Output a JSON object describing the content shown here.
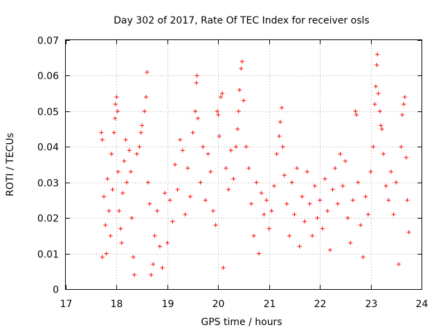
{
  "chart_data": {
    "type": "scatter",
    "title": "Day 302 of 2017, Rate Of TEC Index for receiver osls",
    "xlabel": "GPS time / hours",
    "ylabel": "ROTI / TECUs",
    "xlim": [
      17,
      24
    ],
    "ylim": [
      0,
      0.07
    ],
    "xticks": [
      17,
      18,
      19,
      20,
      21,
      22,
      23,
      24
    ],
    "xtick_labels": [
      "17",
      "18",
      "19",
      "20",
      "21",
      "22",
      "23",
      "24"
    ],
    "yticks": [
      0,
      0.01,
      0.02,
      0.03,
      0.04,
      0.05,
      0.06,
      0.07
    ],
    "ytick_labels": [
      "0",
      "0.01",
      "0.02",
      "0.03",
      "0.04",
      "0.05",
      "0.06",
      "0.07"
    ],
    "grid": true,
    "marker": "+",
    "color": "#ff0000",
    "series": [
      {
        "name": "ROTI",
        "points": [
          [
            17.7,
            0.044
          ],
          [
            17.72,
            0.042
          ],
          [
            17.72,
            0.009
          ],
          [
            17.75,
            0.026
          ],
          [
            17.78,
            0.018
          ],
          [
            17.8,
            0.01
          ],
          [
            17.82,
            0.031
          ],
          [
            17.85,
            0.022
          ],
          [
            17.88,
            0.015
          ],
          [
            17.9,
            0.038
          ],
          [
            17.92,
            0.028
          ],
          [
            17.95,
            0.044
          ],
          [
            17.97,
            0.048
          ],
          [
            17.98,
            0.052
          ],
          [
            18.0,
            0.054
          ],
          [
            18.02,
            0.05
          ],
          [
            18.03,
            0.033
          ],
          [
            18.05,
            0.022
          ],
          [
            18.08,
            0.017
          ],
          [
            18.1,
            0.013
          ],
          [
            18.12,
            0.027
          ],
          [
            18.15,
            0.036
          ],
          [
            18.18,
            0.042
          ],
          [
            18.2,
            0.03
          ],
          [
            18.25,
            0.039
          ],
          [
            18.28,
            0.033
          ],
          [
            18.3,
            0.02
          ],
          [
            18.33,
            0.009
          ],
          [
            18.35,
            0.004
          ],
          [
            18.4,
            0.038
          ],
          [
            18.45,
            0.04
          ],
          [
            18.48,
            0.044
          ],
          [
            18.5,
            0.046
          ],
          [
            18.55,
            0.05
          ],
          [
            18.58,
            0.054
          ],
          [
            18.6,
            0.061
          ],
          [
            18.62,
            0.03
          ],
          [
            18.65,
            0.024
          ],
          [
            18.68,
            0.004
          ],
          [
            18.72,
            0.007
          ],
          [
            18.75,
            0.015
          ],
          [
            18.8,
            0.022
          ],
          [
            18.85,
            0.012
          ],
          [
            18.9,
            0.006
          ],
          [
            18.95,
            0.027
          ],
          [
            19.0,
            0.013
          ],
          [
            19.05,
            0.025
          ],
          [
            19.1,
            0.019
          ],
          [
            19.15,
            0.035
          ],
          [
            19.2,
            0.028
          ],
          [
            19.25,
            0.042
          ],
          [
            19.3,
            0.039
          ],
          [
            19.35,
            0.021
          ],
          [
            19.4,
            0.034
          ],
          [
            19.45,
            0.026
          ],
          [
            19.5,
            0.044
          ],
          [
            19.55,
            0.05
          ],
          [
            19.57,
            0.058
          ],
          [
            19.58,
            0.06
          ],
          [
            19.6,
            0.048
          ],
          [
            19.65,
            0.03
          ],
          [
            19.7,
            0.04
          ],
          [
            19.75,
            0.025
          ],
          [
            19.8,
            0.038
          ],
          [
            19.85,
            0.033
          ],
          [
            19.9,
            0.022
          ],
          [
            19.95,
            0.018
          ],
          [
            19.98,
            0.05
          ],
          [
            20.0,
            0.049
          ],
          [
            20.02,
            0.043
          ],
          [
            20.05,
            0.054
          ],
          [
            20.08,
            0.055
          ],
          [
            20.1,
            0.006
          ],
          [
            20.15,
            0.034
          ],
          [
            20.2,
            0.028
          ],
          [
            20.25,
            0.039
          ],
          [
            20.3,
            0.031
          ],
          [
            20.35,
            0.04
          ],
          [
            20.38,
            0.045
          ],
          [
            20.4,
            0.05
          ],
          [
            20.42,
            0.056
          ],
          [
            20.45,
            0.062
          ],
          [
            20.47,
            0.064
          ],
          [
            20.5,
            0.053
          ],
          [
            20.55,
            0.04
          ],
          [
            20.6,
            0.034
          ],
          [
            20.65,
            0.024
          ],
          [
            20.7,
            0.015
          ],
          [
            20.75,
            0.03
          ],
          [
            20.8,
            0.01
          ],
          [
            20.85,
            0.027
          ],
          [
            20.9,
            0.021
          ],
          [
            20.95,
            0.025
          ],
          [
            21.0,
            0.017
          ],
          [
            21.05,
            0.022
          ],
          [
            21.1,
            0.029
          ],
          [
            21.15,
            0.038
          ],
          [
            21.2,
            0.043
          ],
          [
            21.22,
            0.047
          ],
          [
            21.25,
            0.051
          ],
          [
            21.27,
            0.04
          ],
          [
            21.3,
            0.032
          ],
          [
            21.35,
            0.024
          ],
          [
            21.4,
            0.015
          ],
          [
            21.45,
            0.03
          ],
          [
            21.5,
            0.021
          ],
          [
            21.55,
            0.034
          ],
          [
            21.6,
            0.012
          ],
          [
            21.65,
            0.026
          ],
          [
            21.7,
            0.019
          ],
          [
            21.75,
            0.033
          ],
          [
            21.8,
            0.024
          ],
          [
            21.85,
            0.015
          ],
          [
            21.9,
            0.029
          ],
          [
            21.95,
            0.02
          ],
          [
            22.0,
            0.025
          ],
          [
            22.05,
            0.017
          ],
          [
            22.1,
            0.031
          ],
          [
            22.15,
            0.022
          ],
          [
            22.2,
            0.011
          ],
          [
            22.25,
            0.028
          ],
          [
            22.3,
            0.034
          ],
          [
            22.35,
            0.024
          ],
          [
            22.4,
            0.038
          ],
          [
            22.45,
            0.029
          ],
          [
            22.5,
            0.036
          ],
          [
            22.55,
            0.02
          ],
          [
            22.6,
            0.013
          ],
          [
            22.65,
            0.025
          ],
          [
            22.7,
            0.05
          ],
          [
            22.72,
            0.049
          ],
          [
            22.75,
            0.03
          ],
          [
            22.8,
            0.018
          ],
          [
            22.85,
            0.009
          ],
          [
            22.9,
            0.026
          ],
          [
            22.95,
            0.021
          ],
          [
            23.0,
            0.033
          ],
          [
            23.05,
            0.04
          ],
          [
            23.08,
            0.052
          ],
          [
            23.1,
            0.057
          ],
          [
            23.12,
            0.063
          ],
          [
            23.13,
            0.066
          ],
          [
            23.15,
            0.055
          ],
          [
            23.18,
            0.05
          ],
          [
            23.2,
            0.046
          ],
          [
            23.22,
            0.045
          ],
          [
            23.25,
            0.038
          ],
          [
            23.3,
            0.029
          ],
          [
            23.35,
            0.025
          ],
          [
            23.4,
            0.033
          ],
          [
            23.45,
            0.021
          ],
          [
            23.5,
            0.03
          ],
          [
            23.55,
            0.007
          ],
          [
            23.6,
            0.04
          ],
          [
            23.62,
            0.049
          ],
          [
            23.65,
            0.052
          ],
          [
            23.67,
            0.054
          ],
          [
            23.7,
            0.037
          ],
          [
            23.72,
            0.025
          ],
          [
            23.75,
            0.016
          ]
        ]
      }
    ]
  }
}
